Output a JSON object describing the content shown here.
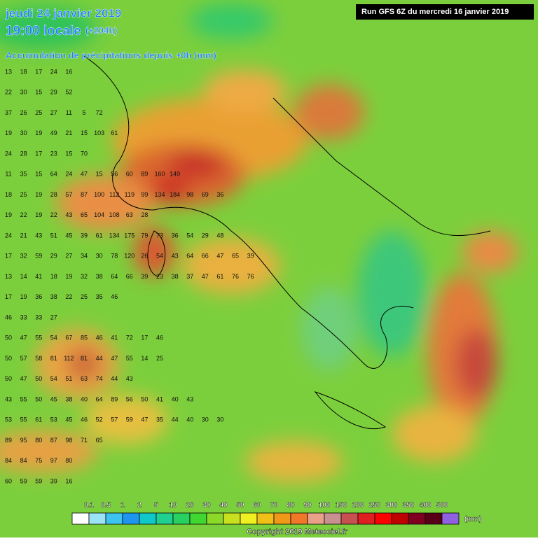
{
  "header": {
    "date": "jeudi 24 janvier 2019",
    "time": "19:00 locale",
    "lead": "(+204h)",
    "field": "Accumulation de précipitations depuis +0h (mm)",
    "run": "Run GFS 6Z du mercredi 16 janvier 2019"
  },
  "grid_rows": [
    [
      13,
      18,
      17,
      24,
      16
    ],
    [
      22,
      30,
      15,
      29,
      52
    ],
    [
      37,
      26,
      25,
      27,
      11,
      5,
      72
    ],
    [
      19,
      30,
      19,
      49,
      21,
      15,
      103,
      61
    ],
    [
      24,
      28,
      17,
      23,
      15,
      70
    ],
    [
      11,
      35,
      15,
      64,
      24,
      47,
      15,
      56,
      60,
      89,
      160,
      149
    ],
    [
      18,
      25,
      19,
      28,
      57,
      87,
      100,
      112,
      119,
      99,
      134,
      184,
      98,
      69,
      36
    ],
    [
      19,
      22,
      19,
      22,
      43,
      65,
      104,
      108,
      63,
      28
    ],
    [
      24,
      21,
      43,
      51,
      45,
      39,
      61,
      134,
      175,
      79,
      73,
      36,
      54,
      29,
      48
    ],
    [
      17,
      32,
      59,
      29,
      27,
      34,
      30,
      78,
      120,
      26,
      54,
      43,
      64,
      66,
      47,
      65,
      39
    ],
    [
      13,
      14,
      41,
      18,
      19,
      32,
      38,
      64,
      66,
      39,
      23,
      38,
      37,
      47,
      61,
      76,
      76
    ],
    [
      17,
      19,
      36,
      38,
      22,
      25,
      35,
      46
    ],
    [
      46,
      33,
      33,
      27
    ],
    [
      50,
      47,
      55,
      54,
      67,
      85,
      46,
      41,
      72,
      17,
      46
    ],
    [
      50,
      57,
      58,
      81,
      112,
      81,
      44,
      47,
      55,
      14,
      25
    ],
    [
      50,
      47,
      50,
      54,
      51,
      63,
      74,
      44,
      43
    ],
    [
      43,
      55,
      50,
      45,
      38,
      40,
      64,
      89,
      56,
      50,
      41,
      40,
      43
    ],
    [
      53,
      55,
      61,
      53,
      45,
      46,
      52,
      57,
      59,
      47,
      35,
      44,
      40,
      30,
      30
    ],
    [
      89,
      95,
      80,
      87,
      98,
      71,
      65
    ],
    [
      84,
      84,
      75,
      97,
      80
    ],
    [
      60,
      59,
      59,
      39,
      16
    ]
  ],
  "legend": {
    "labels": [
      0.1,
      0.5,
      1,
      2,
      5,
      10,
      20,
      30,
      40,
      50,
      60,
      70,
      80,
      90,
      100,
      150,
      200,
      250,
      300,
      350,
      400,
      500
    ],
    "colors": [
      "#ffffff",
      "#9be4f5",
      "#3cc3f0",
      "#1e96f0",
      "#10c8c8",
      "#20d090",
      "#28d060",
      "#40d830",
      "#8cd828",
      "#c8e020",
      "#f0f020",
      "#f0c018",
      "#f09818",
      "#f07828",
      "#e8a088",
      "#c89090",
      "#c85050",
      "#e02020",
      "#ff0000",
      "#c00000",
      "#800020",
      "#580018",
      "#9060e0"
    ],
    "unit": "(mm)"
  },
  "footer": {
    "copyright": "Copyright 2019 Meteociel.fr"
  }
}
